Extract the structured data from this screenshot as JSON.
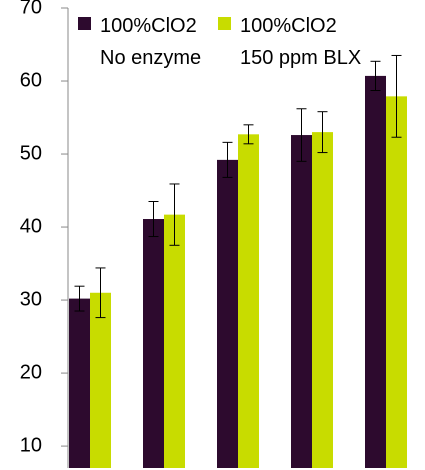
{
  "chart_data": {
    "type": "bar",
    "categories": [
      null,
      null,
      null,
      null,
      null
    ],
    "series": [
      {
        "name": "100%ClO2\nNo enzyme",
        "color": "#2d0a2e",
        "values": [
          30.2,
          41.1,
          49.2,
          52.6,
          60.7
        ],
        "errors": [
          1.7,
          2.4,
          2.4,
          3.6,
          2.0
        ]
      },
      {
        "name": "100%ClO2\n150 ppm BLX",
        "color": "#c8dc00",
        "values": [
          31.0,
          41.7,
          52.7,
          53.0,
          57.9
        ],
        "errors": [
          3.4,
          4.2,
          1.3,
          2.8,
          5.6
        ]
      }
    ],
    "ylim": [
      7,
      70
    ],
    "yticks": [
      10,
      20,
      30,
      40,
      50,
      60,
      70
    ],
    "grid": false
  }
}
